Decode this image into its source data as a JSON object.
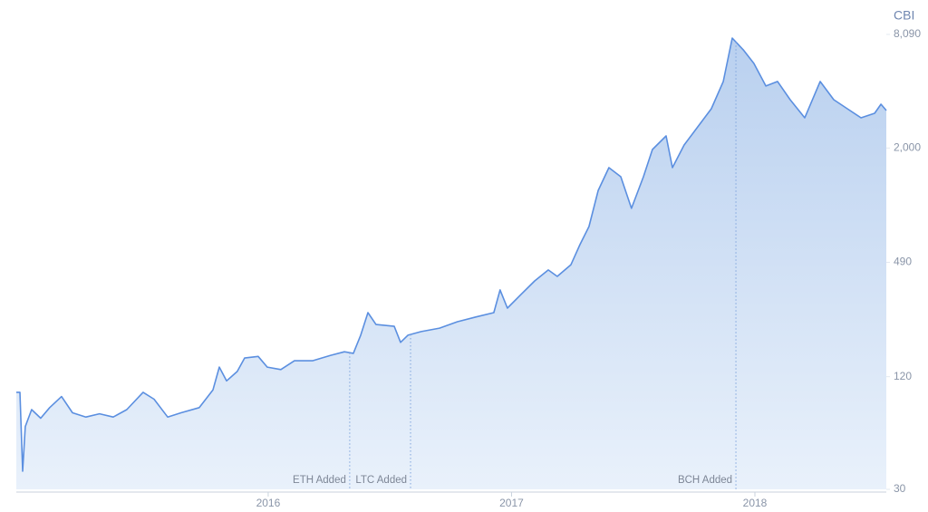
{
  "chart_data": {
    "type": "area",
    "y_label": "CBI",
    "yscale": "log",
    "color": "#5b8fe0",
    "x": [
      2014.965,
      2014.98,
      2014.991,
      2015.002,
      2015.028,
      2015.065,
      2015.102,
      2015.151,
      2015.196,
      2015.251,
      2015.307,
      2015.363,
      2015.419,
      2015.486,
      2015.531,
      2015.587,
      2015.642,
      2015.717,
      2015.773,
      2015.799,
      2015.829,
      2015.873,
      2015.903,
      2015.959,
      2015.996,
      2016.052,
      2016.108,
      2016.182,
      2016.257,
      2016.313,
      2016.35,
      2016.38,
      2016.41,
      2016.443,
      2016.518,
      2016.544,
      2016.574,
      2016.629,
      2016.704,
      2016.778,
      2016.853,
      2016.927,
      2016.953,
      2016.983,
      2017.039,
      2017.095,
      2017.151,
      2017.188,
      2017.244,
      2017.281,
      2017.318,
      2017.356,
      2017.4,
      2017.449,
      2017.493,
      2017.542,
      2017.579,
      2017.635,
      2017.661,
      2017.709,
      2017.765,
      2017.821,
      2017.87,
      2017.907,
      2017.952,
      2017.996,
      2018.045,
      2018.093,
      2018.145,
      2018.205,
      2018.268,
      2018.324,
      2018.38,
      2018.436,
      2018.492,
      2018.518,
      2018.54
    ],
    "values": [
      99,
      99,
      37.5,
      65,
      80,
      72,
      82,
      94,
      77,
      73,
      76,
      73,
      80,
      99,
      91,
      73,
      77,
      82,
      102,
      135,
      114,
      128,
      151,
      154,
      135,
      131,
      146,
      146,
      156,
      163,
      160,
      200,
      264,
      228,
      223,
      183,
      200,
      209,
      218,
      236,
      250,
      264,
      349,
      279,
      330,
      390,
      446,
      412,
      476,
      609,
      761,
      1188,
      1571,
      1405,
      952,
      1405,
      1963,
      2321,
      1571,
      2076,
      2595,
      3243,
      4534,
      7739,
      6701,
      5664,
      4290,
      4534,
      3626,
      2902,
      4534,
      3626,
      3243,
      2902,
      3067,
      3429,
      3173
    ],
    "xlim": [
      2014.965,
      2018.54
    ],
    "xticks": [
      2016,
      2017,
      2018
    ],
    "ylim": [
      30,
      8090
    ],
    "yticks": [
      30,
      120,
      490,
      {
        "value": 2000,
        "label": "2,000"
      },
      {
        "value": 8090,
        "label": "8,090"
      }
    ],
    "annotations": [
      {
        "label": "ETH Added",
        "x": 2016.335
      },
      {
        "label": "LTC Added",
        "x": 2016.585
      },
      {
        "label": "BCH Added",
        "x": 2017.922
      }
    ]
  }
}
